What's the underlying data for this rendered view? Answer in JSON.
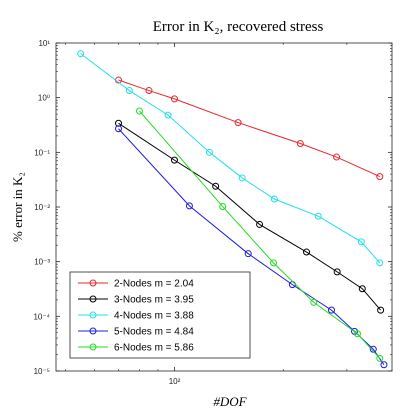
{
  "chart_data": {
    "type": "line",
    "title": "Error in K₂, recovered stress",
    "xlabel": "#DOF",
    "ylabel": "% error in K₂",
    "x_scale": "log",
    "y_scale": "log",
    "xlim": [
      47,
      400
    ],
    "ylim": [
      1e-05,
      10
    ],
    "x_ticks": [
      {
        "value": 100,
        "label": "10²"
      }
    ],
    "y_ticks": [
      {
        "value": 10,
        "label": "10¹"
      },
      {
        "value": 1,
        "label": "10⁰"
      },
      {
        "value": 0.1,
        "label": "10⁻¹"
      },
      {
        "value": 0.01,
        "label": "10⁻²"
      },
      {
        "value": 0.001,
        "label": "10⁻³"
      },
      {
        "value": 0.0001,
        "label": "10⁻⁴"
      },
      {
        "value": 1e-05,
        "label": "10⁻⁵"
      }
    ],
    "grid": false,
    "legend_position": "bottom-left",
    "series": [
      {
        "name": "2-Nodes m = 2.04",
        "color": "#e8262a",
        "points": [
          [
            70,
            2.1
          ],
          [
            85,
            1.35
          ],
          [
            100,
            0.95
          ],
          [
            150,
            0.35
          ],
          [
            223,
            0.145
          ],
          [
            281,
            0.082
          ],
          [
            370,
            0.036
          ]
        ]
      },
      {
        "name": "3-Nodes m = 3.95",
        "color": "#000000",
        "points": [
          [
            70,
            0.34
          ],
          [
            100,
            0.072
          ],
          [
            130,
            0.024
          ],
          [
            172,
            0.0048
          ],
          [
            232,
            0.0015
          ],
          [
            282,
            0.00065
          ],
          [
            331,
            0.00032
          ],
          [
            372,
            0.00013
          ]
        ]
      },
      {
        "name": "4-Nodes m = 3.88",
        "color": "#22e0e8",
        "points": [
          [
            55,
            6.4
          ],
          [
            75,
            1.35
          ],
          [
            96,
            0.48
          ],
          [
            125,
            0.1
          ],
          [
            154,
            0.034
          ],
          [
            189,
            0.014
          ],
          [
            250,
            0.0068
          ],
          [
            329,
            0.0023
          ],
          [
            370,
            0.00095
          ]
        ]
      },
      {
        "name": "5-Nodes m = 4.84",
        "color": "#1c1ce0",
        "points": [
          [
            70,
            0.27
          ],
          [
            110,
            0.0105
          ],
          [
            160,
            0.0014
          ],
          [
            212,
            0.00038
          ],
          [
            272,
            0.00013
          ],
          [
            315,
            5.3e-05
          ],
          [
            355,
            2.5e-05
          ],
          [
            380,
            1.3e-05
          ]
        ]
      },
      {
        "name": "6-Nodes m = 5.86",
        "color": "#22dc22",
        "points": [
          [
            80,
            0.57
          ],
          [
            136,
            0.0102
          ],
          [
            188,
            0.00095
          ],
          [
            243,
            0.00018
          ],
          [
            321,
            4.8e-05
          ],
          [
            370,
            1.7e-05
          ]
        ]
      }
    ]
  }
}
